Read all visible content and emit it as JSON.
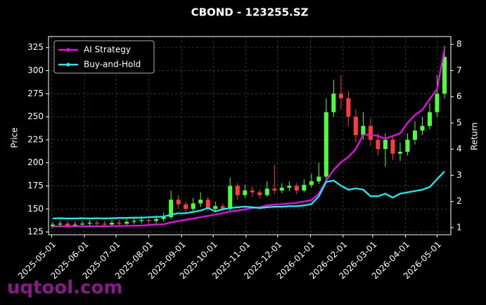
{
  "chart_data": {
    "type": "candlestick",
    "title": "CBOND - 123255.SZ",
    "ylabel": "Price",
    "y2label": "Return",
    "watermark": "uqtool.com",
    "x": [
      "2025-05-02",
      "2025-05-09",
      "2025-05-16",
      "2025-05-23",
      "2025-05-30",
      "2025-06-06",
      "2025-06-13",
      "2025-06-20",
      "2025-06-27",
      "2025-07-04",
      "2025-07-11",
      "2025-07-18",
      "2025-07-25",
      "2025-08-01",
      "2025-08-08",
      "2025-08-15",
      "2025-08-22",
      "2025-08-29",
      "2025-09-05",
      "2025-09-12",
      "2025-09-19",
      "2025-09-26",
      "2025-10-03",
      "2025-10-10",
      "2025-10-17",
      "2025-10-24",
      "2025-10-31",
      "2025-11-07",
      "2025-11-14",
      "2025-11-21",
      "2025-11-28",
      "2025-12-05",
      "2025-12-12",
      "2025-12-19",
      "2025-12-26",
      "2026-01-02",
      "2026-01-09",
      "2026-01-16",
      "2026-01-23",
      "2026-01-30",
      "2026-02-06",
      "2026-02-13",
      "2026-02-20",
      "2026-02-27",
      "2026-03-06",
      "2026-03-13",
      "2026-03-20",
      "2026-03-27",
      "2026-04-03",
      "2026-04-10",
      "2026-04-17",
      "2026-04-24",
      "2026-05-01",
      "2026-05-08"
    ],
    "open": [
      131,
      133,
      134,
      132,
      133,
      134,
      135,
      134,
      133,
      135,
      134,
      136,
      137,
      138,
      137,
      139,
      141,
      160,
      155,
      150,
      156,
      160,
      150,
      153,
      150,
      175,
      165,
      170,
      168,
      165,
      172,
      170,
      173,
      175,
      170,
      176,
      180,
      185,
      255,
      275,
      270,
      250,
      230,
      240,
      225,
      215,
      225,
      210,
      212,
      225,
      235,
      240,
      255,
      275
    ],
    "high": [
      136,
      137,
      137,
      136,
      137,
      138,
      138,
      137,
      138,
      138,
      139,
      140,
      142,
      141,
      143,
      146,
      170,
      165,
      158,
      162,
      168,
      163,
      158,
      156,
      184,
      178,
      176,
      174,
      171,
      180,
      198,
      178,
      180,
      178,
      182,
      188,
      200,
      270,
      290,
      295,
      278,
      258,
      255,
      248,
      232,
      232,
      230,
      222,
      232,
      245,
      250,
      265,
      295,
      327
    ],
    "low": [
      129,
      130,
      129,
      130,
      131,
      131,
      131,
      130,
      131,
      131,
      132,
      133,
      134,
      134,
      134,
      136,
      139,
      150,
      146,
      147,
      152,
      147,
      146,
      147,
      148,
      160,
      162,
      163,
      161,
      163,
      166,
      167,
      169,
      166,
      168,
      173,
      177,
      182,
      250,
      258,
      240,
      222,
      225,
      218,
      208,
      196,
      203,
      202,
      208,
      220,
      230,
      236,
      250,
      270
    ],
    "close": [
      133,
      134,
      132,
      133,
      134,
      135,
      134,
      133,
      135,
      134,
      136,
      137,
      138,
      137,
      139,
      141,
      160,
      155,
      150,
      156,
      160,
      150,
      153,
      150,
      175,
      165,
      170,
      168,
      165,
      172,
      170,
      173,
      175,
      170,
      176,
      180,
      185,
      255,
      275,
      270,
      250,
      230,
      240,
      225,
      215,
      225,
      210,
      212,
      225,
      235,
      240,
      255,
      275,
      315
    ],
    "up_color": "#4cff3c",
    "down_color": "#ff3b3b",
    "series": [
      {
        "name": "AI Strategy",
        "color": "#ff00ff",
        "axis": "y2",
        "values": [
          1.05,
          1.05,
          1.05,
          1.05,
          1.05,
          1.05,
          1.05,
          1.05,
          1.06,
          1.06,
          1.07,
          1.07,
          1.08,
          1.1,
          1.12,
          1.13,
          1.2,
          1.25,
          1.3,
          1.35,
          1.4,
          1.45,
          1.5,
          1.55,
          1.62,
          1.65,
          1.7,
          1.75,
          1.78,
          1.85,
          1.88,
          1.9,
          1.92,
          1.95,
          2.0,
          2.05,
          2.3,
          2.8,
          3.2,
          3.5,
          3.7,
          4.0,
          4.55,
          4.55,
          4.5,
          4.4,
          4.5,
          4.6,
          5.0,
          5.3,
          5.5,
          5.9,
          6.3,
          7.8
        ]
      },
      {
        "name": "Buy-and-Hold",
        "color": "#00ffff",
        "axis": "y2",
        "values": [
          1.35,
          1.36,
          1.35,
          1.35,
          1.36,
          1.35,
          1.36,
          1.35,
          1.36,
          1.37,
          1.37,
          1.38,
          1.38,
          1.4,
          1.41,
          1.42,
          1.5,
          1.55,
          1.55,
          1.6,
          1.65,
          1.75,
          1.62,
          1.7,
          1.75,
          1.78,
          1.8,
          1.78,
          1.75,
          1.78,
          1.8,
          1.8,
          1.82,
          1.82,
          1.85,
          1.9,
          2.2,
          2.75,
          2.8,
          2.6,
          2.45,
          2.5,
          2.45,
          2.2,
          2.2,
          2.3,
          2.15,
          2.3,
          2.35,
          2.4,
          2.45,
          2.55,
          2.85,
          3.15
        ]
      }
    ],
    "xlim": [
      "2025-04-28",
      "2026-05-14"
    ],
    "xticks": [
      "2025-05-01",
      "2025-06-01",
      "2025-07-01",
      "2025-08-01",
      "2025-09-01",
      "2025-10-01",
      "2025-11-01",
      "2025-12-01",
      "2026-01-01",
      "2026-02-01",
      "2026-03-01",
      "2026-04-01",
      "2026-05-01"
    ],
    "ylim": [
      122,
      337
    ],
    "yticks": [
      125,
      150,
      175,
      200,
      225,
      250,
      275,
      300,
      325
    ],
    "y2lim": [
      0.73,
      8.3
    ],
    "y2ticks": [
      1,
      2,
      3,
      4,
      5,
      6,
      7,
      8
    ],
    "grid": true,
    "legend": "upper left"
  }
}
